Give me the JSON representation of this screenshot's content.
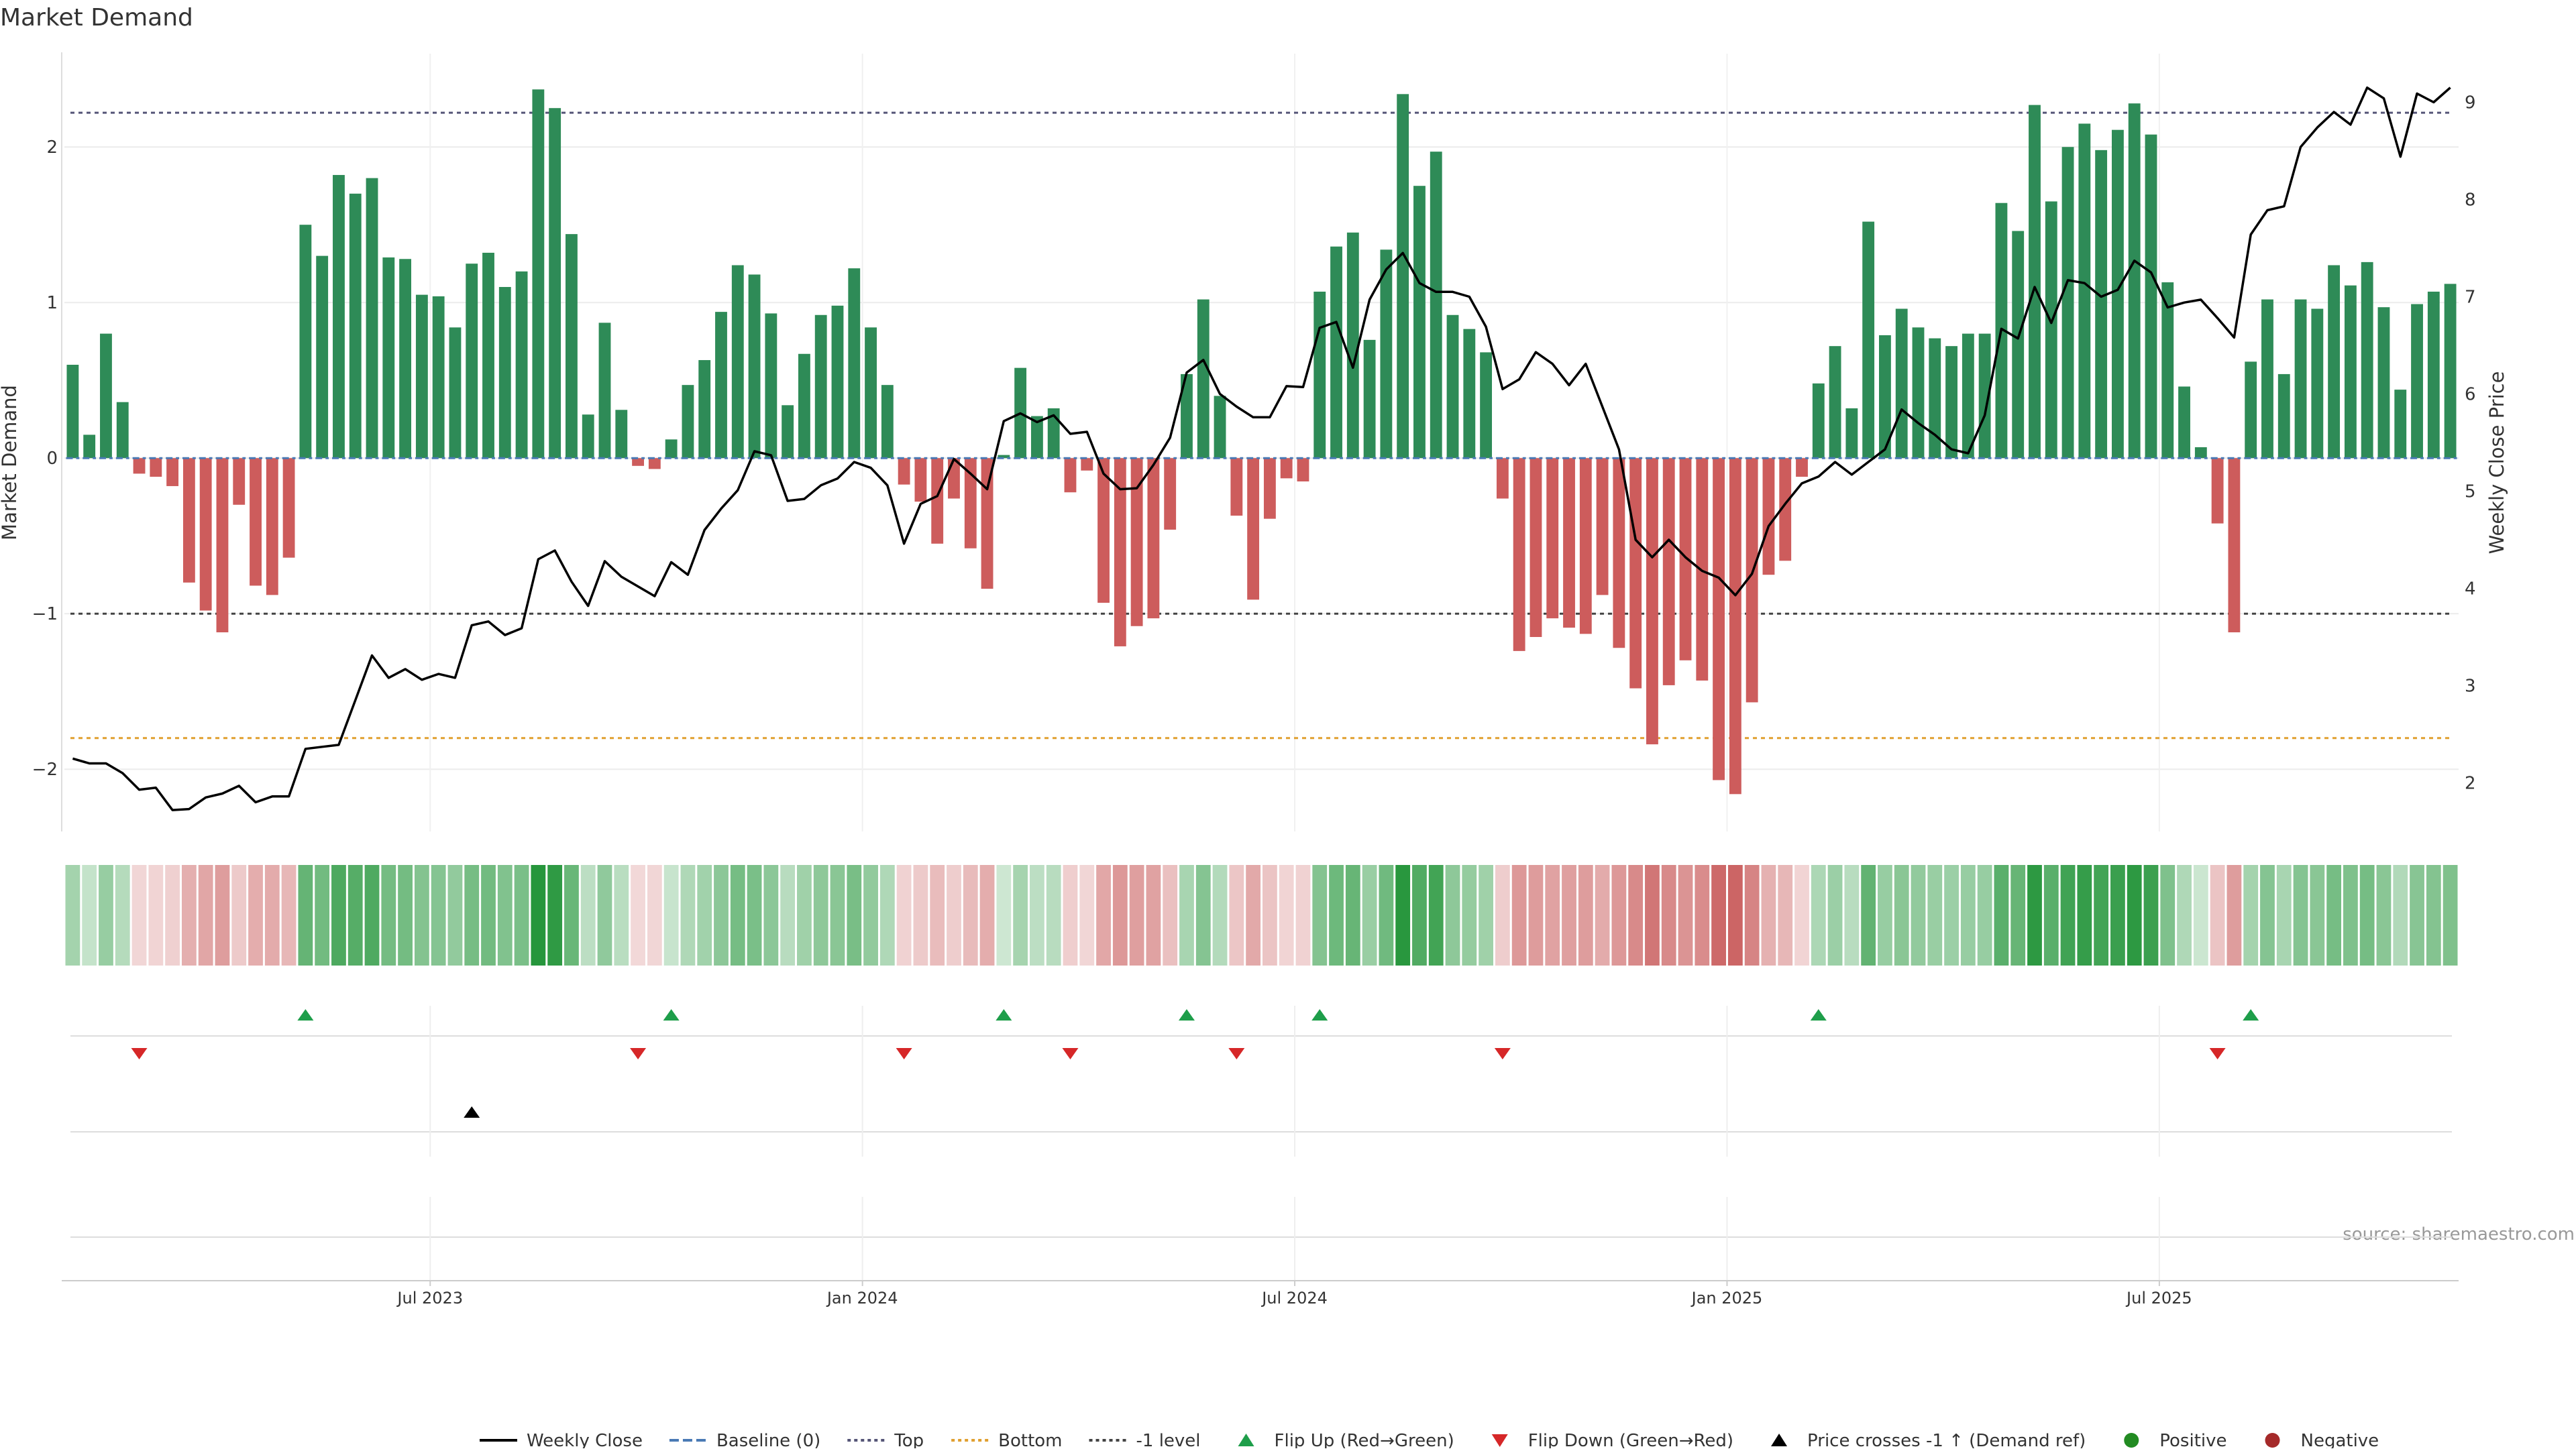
{
  "title": "Market Demand",
  "source_note": "source: sharemaestro.com",
  "colors": {
    "positive_bar": "#2e8b57",
    "negative_bar": "#cd5c5c",
    "price_line": "#000000",
    "flip_up": "#1e9e4a",
    "flip_down": "#d62728",
    "bottom_line": "#e0a030",
    "ref_line": "#555577"
  },
  "chart_data": {
    "type": "bar",
    "title": "Market Demand",
    "ylabel": "Market Demand",
    "y2label": "Weekly Close Price",
    "ylim": [
      -2.4,
      2.6
    ],
    "y2lim": [
      1.5,
      9.5
    ],
    "yticks": [
      -2,
      -1,
      0,
      1,
      2
    ],
    "y2ticks": [
      2,
      3,
      4,
      5,
      6,
      7,
      8,
      9
    ],
    "y_tick_labels": [
      "−2",
      "−1",
      "0",
      "1",
      "2"
    ],
    "y2_tick_labels": [
      "2",
      "3",
      "4",
      "5",
      "6",
      "7",
      "8",
      "9"
    ],
    "reference_lines": {
      "baseline": 0,
      "top": 2.22,
      "bottom": -1.8,
      "minus_one_level": -1
    },
    "x_tick_labels": [
      "Jul 2023",
      "Jan 2024",
      "Jul 2024",
      "Jan 2025",
      "Jul 2025"
    ],
    "x_tick_positions": [
      22,
      48,
      74,
      100,
      126
    ],
    "demand": [
      0.6,
      0.15,
      0.8,
      0.36,
      -0.1,
      -0.12,
      -0.18,
      -0.8,
      -0.98,
      -1.12,
      -0.3,
      -0.82,
      -0.88,
      -0.64,
      1.5,
      1.3,
      1.82,
      1.7,
      1.8,
      1.29,
      1.28,
      1.05,
      1.04,
      0.84,
      1.25,
      1.32,
      1.1,
      1.2,
      2.37,
      2.25,
      1.44,
      0.28,
      0.87,
      0.31,
      -0.05,
      -0.07,
      0.12,
      0.47,
      0.63,
      0.94,
      1.24,
      1.18,
      0.93,
      0.34,
      0.67,
      0.92,
      0.98,
      1.22,
      0.84,
      0.47,
      -0.17,
      -0.28,
      -0.55,
      -0.26,
      -0.58,
      -0.84,
      0.02,
      0.58,
      0.27,
      0.32,
      -0.22,
      -0.08,
      -0.93,
      -1.21,
      -1.08,
      -1.03,
      -0.46,
      0.54,
      1.02,
      0.4,
      -0.37,
      -0.91,
      -0.39,
      -0.13,
      -0.15,
      1.07,
      1.36,
      1.45,
      0.76,
      1.34,
      2.34,
      1.75,
      1.97,
      0.92,
      0.83,
      0.68,
      -0.26,
      -1.24,
      -1.15,
      -1.03,
      -1.09,
      -1.13,
      -0.88,
      -1.22,
      -1.48,
      -1.84,
      -1.46,
      -1.3,
      -1.43,
      -2.07,
      -2.16,
      -1.57,
      -0.75,
      -0.66,
      -0.12,
      0.48,
      0.72,
      0.32,
      1.52,
      0.79,
      0.96,
      0.84,
      0.77,
      0.72,
      0.8,
      0.8,
      1.64,
      1.46,
      2.27,
      1.65,
      2.0,
      2.15,
      1.98,
      2.11,
      2.28,
      2.08,
      1.13,
      0.46,
      0.07,
      -0.42,
      -1.12,
      0.62,
      1.02,
      0.54,
      1.02,
      0.96,
      1.24,
      1.11,
      1.26,
      0.97,
      0.44,
      0.99,
      1.07,
      1.12
    ],
    "price_x": [
      0,
      1,
      2,
      3,
      4,
      5,
      6,
      7,
      8,
      9,
      10,
      11,
      12,
      13,
      14,
      15,
      16,
      17,
      18,
      19,
      20,
      21,
      22,
      23,
      24,
      25,
      26,
      27,
      28,
      29,
      30,
      31,
      32,
      33,
      34,
      35,
      36,
      37,
      38,
      39,
      40,
      41,
      42,
      43,
      44,
      45,
      46,
      47,
      48,
      49,
      50,
      51,
      52,
      53,
      54,
      55,
      56,
      57,
      58,
      59,
      60,
      61,
      62,
      63,
      64,
      65,
      66,
      67,
      68,
      69,
      70,
      71,
      72,
      73,
      74,
      75,
      76,
      77,
      78,
      79,
      80,
      81,
      82,
      83,
      84,
      85,
      86,
      87,
      88,
      89,
      90,
      91,
      92,
      93,
      94,
      95,
      96,
      97,
      98,
      99,
      100,
      101,
      102,
      103,
      104,
      105,
      106,
      107,
      108,
      109,
      110,
      111,
      112,
      113,
      114,
      115,
      116,
      117,
      118,
      119,
      120,
      121,
      122,
      123,
      124,
      125,
      126,
      127,
      128,
      129,
      130,
      131,
      132,
      133,
      134,
      135,
      136,
      137,
      138,
      139,
      140,
      141,
      142,
      143
    ],
    "price": [
      2.25,
      2.2,
      2.2,
      2.1,
      1.93,
      1.95,
      1.72,
      1.73,
      1.85,
      1.89,
      1.97,
      1.8,
      1.86,
      1.86,
      2.35,
      2.37,
      2.39,
      2.85,
      3.31,
      3.08,
      3.17,
      3.06,
      3.12,
      3.08,
      3.62,
      3.66,
      3.52,
      3.59,
      4.3,
      4.39,
      4.07,
      3.82,
      4.28,
      4.12,
      4.02,
      3.92,
      4.27,
      4.14,
      4.6,
      4.82,
      5.01,
      5.41,
      5.37,
      4.9,
      4.92,
      5.06,
      5.13,
      5.3,
      5.24,
      5.06,
      4.46,
      4.87,
      4.95,
      5.33,
      5.18,
      5.02,
      5.72,
      5.8,
      5.71,
      5.78,
      5.59,
      5.61,
      5.18,
      5.02,
      5.03,
      5.27,
      5.55,
      6.22,
      6.35,
      6.0,
      5.87,
      5.76,
      5.76,
      6.08,
      6.07,
      6.68,
      6.74,
      6.27,
      6.97,
      7.28,
      7.45,
      7.14,
      7.05,
      7.05,
      7.0,
      6.69,
      6.05,
      6.15,
      6.43,
      6.31,
      6.09,
      6.31,
      5.87,
      5.43,
      4.5,
      4.32,
      4.5,
      4.32,
      4.18,
      4.11,
      3.93,
      4.15,
      4.64,
      4.87,
      5.08,
      5.15,
      5.3,
      5.17,
      5.3,
      5.43,
      5.84,
      5.7,
      5.58,
      5.43,
      5.39,
      5.78,
      6.67,
      6.57,
      7.1,
      6.73,
      7.17,
      7.14,
      7.0,
      7.07,
      7.37,
      7.25,
      6.89,
      6.94,
      6.97,
      6.78,
      6.58,
      7.64,
      7.89,
      7.93,
      8.54,
      8.74,
      8.9,
      8.77,
      9.15,
      9.04,
      8.44,
      9.09,
      9.0,
      9.15
    ],
    "flip_up_x": [
      14,
      36,
      56,
      67,
      75,
      105,
      131
    ],
    "flip_down_x": [
      4,
      34,
      50,
      60,
      70,
      86,
      129
    ],
    "price_cross_x": [
      24
    ],
    "legend": [
      "Weekly Close",
      "Baseline (0)",
      "Top",
      "Bottom",
      "-1 level",
      "Flip Up (Red→Green)",
      "Flip Down (Green→Red)",
      "Price crosses -1 ↑ (Demand ref)",
      "Positive",
      "Negative"
    ],
    "legend_position": "bottom-center",
    "grid": true
  }
}
